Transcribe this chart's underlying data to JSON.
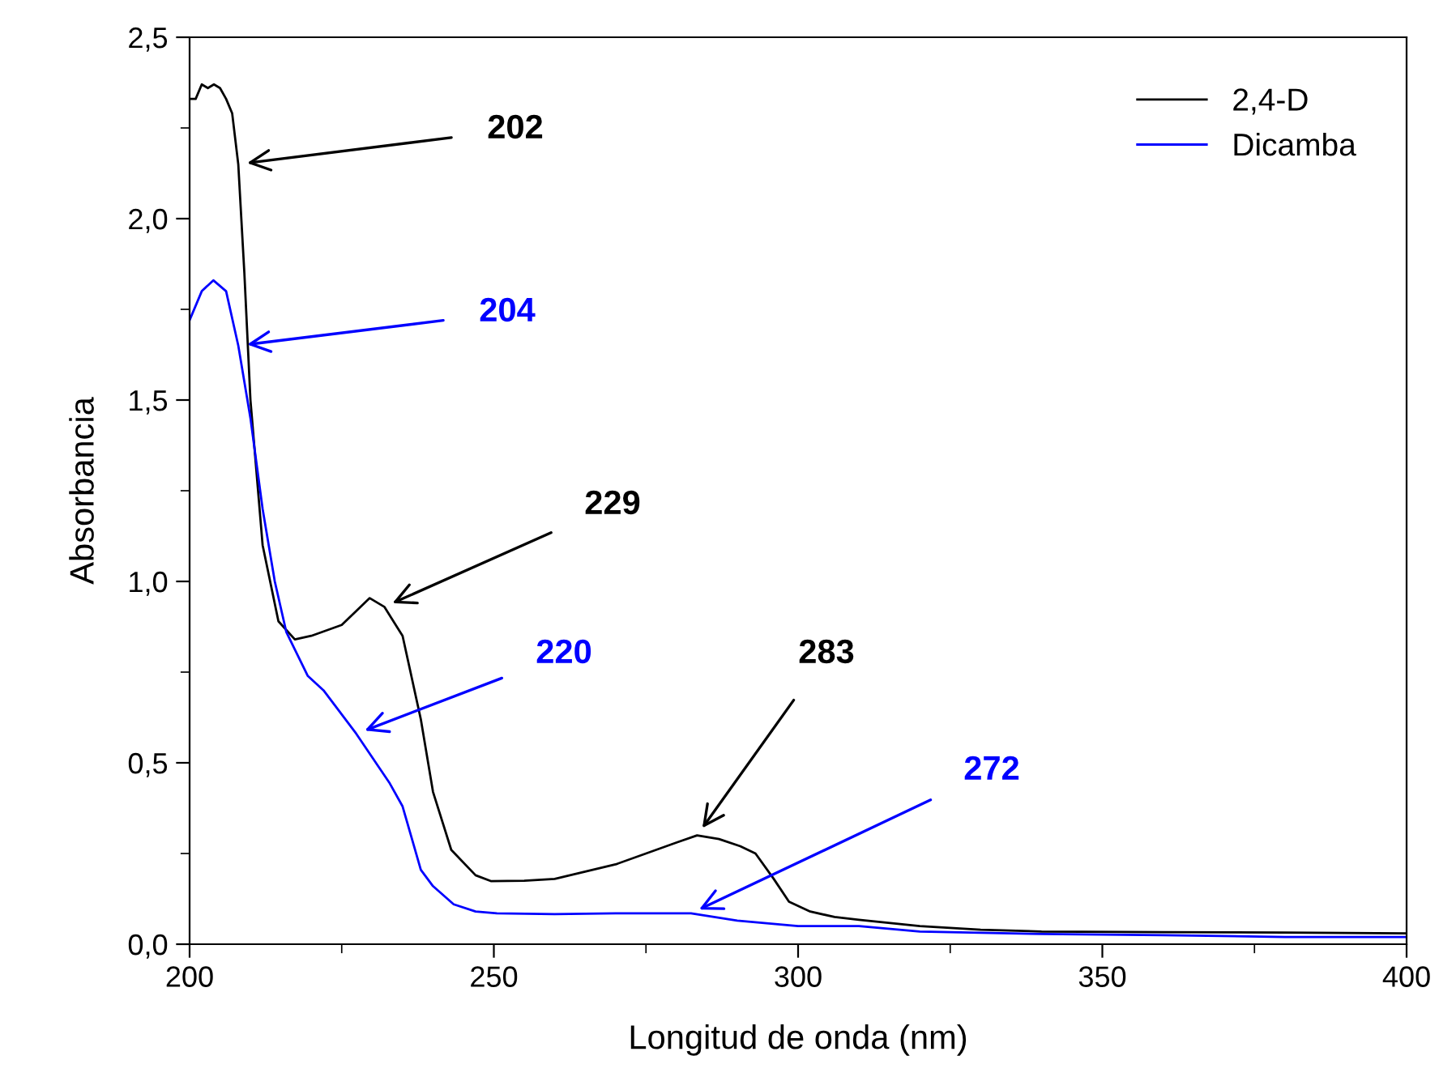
{
  "chart_data": {
    "type": "line",
    "xlabel": "Longitud de onda (nm)",
    "ylabel": "Absorbancia",
    "xlim": [
      200,
      400
    ],
    "xticks": [
      200,
      250,
      300,
      350,
      400
    ],
    "ylim": [
      0,
      2.5
    ],
    "yticks": [
      {
        "value": 0,
        "label": "0,0"
      },
      {
        "value": 0.5,
        "label": "0,5"
      },
      {
        "value": 1,
        "label": "1,0"
      },
      {
        "value": 1.5,
        "label": "1,5"
      },
      {
        "value": 2,
        "label": "2,0"
      },
      {
        "value": 2.5,
        "label": "2,5"
      }
    ],
    "grid": false,
    "legend": "top right",
    "series": [
      {
        "name": "2,4-D",
        "color": "#000000",
        "x": [
          200,
          201,
          202,
          203,
          204,
          205,
          206,
          207,
          208,
          209,
          210,
          212,
          214.6,
          217.3,
          220,
          225,
          229.6,
          232,
          235,
          238,
          240,
          243,
          247,
          249.5,
          255,
          260,
          265,
          270,
          275,
          280,
          283.4,
          287,
          290.5,
          293,
          296,
          298.5,
          302,
          306,
          310,
          320,
          330,
          340,
          360,
          380,
          400
        ],
        "values": [
          2.33,
          2.33,
          2.37,
          2.36,
          2.37,
          2.36,
          2.33,
          2.29,
          2.15,
          1.85,
          1.5,
          1.1,
          0.89,
          0.84,
          0.85,
          0.88,
          0.954,
          0.93,
          0.85,
          0.62,
          0.42,
          0.26,
          0.19,
          0.174,
          0.175,
          0.18,
          0.2,
          0.22,
          0.25,
          0.28,
          0.3,
          0.29,
          0.27,
          0.25,
          0.18,
          0.117,
          0.09,
          0.075,
          0.067,
          0.05,
          0.04,
          0.035,
          0.033,
          0.032,
          0.03
        ]
      },
      {
        "name": "Dicamba",
        "color": "#0000ff",
        "x": [
          200,
          202,
          203.9,
          206,
          208,
          210,
          212,
          214,
          215.9,
          219.4,
          222,
          227.4,
          232.8,
          235,
          238,
          240,
          243.4,
          247,
          250.5,
          260,
          270,
          282.4,
          290,
          300,
          310,
          320,
          340,
          360,
          380,
          400
        ],
        "values": [
          1.72,
          1.8,
          1.83,
          1.8,
          1.65,
          1.45,
          1.2,
          1.0,
          0.86,
          0.74,
          0.7,
          0.58,
          0.446,
          0.38,
          0.205,
          0.16,
          0.11,
          0.09,
          0.085,
          0.083,
          0.085,
          0.085,
          0.065,
          0.05,
          0.05,
          0.035,
          0.028,
          0.025,
          0.02,
          0.02
        ]
      }
    ],
    "annotations": [
      {
        "text": "202",
        "x": 208,
        "y": 2.15
      },
      {
        "text": "204",
        "x": 208,
        "y": 1.65
      },
      {
        "text": "229",
        "x": 232,
        "y": 0.93
      },
      {
        "text": "220",
        "x": 227.4,
        "y": 0.58
      },
      {
        "text": "283",
        "x": 283.4,
        "y": 0.3
      },
      {
        "text": "272",
        "x": 282.4,
        "y": 0.085
      }
    ]
  }
}
